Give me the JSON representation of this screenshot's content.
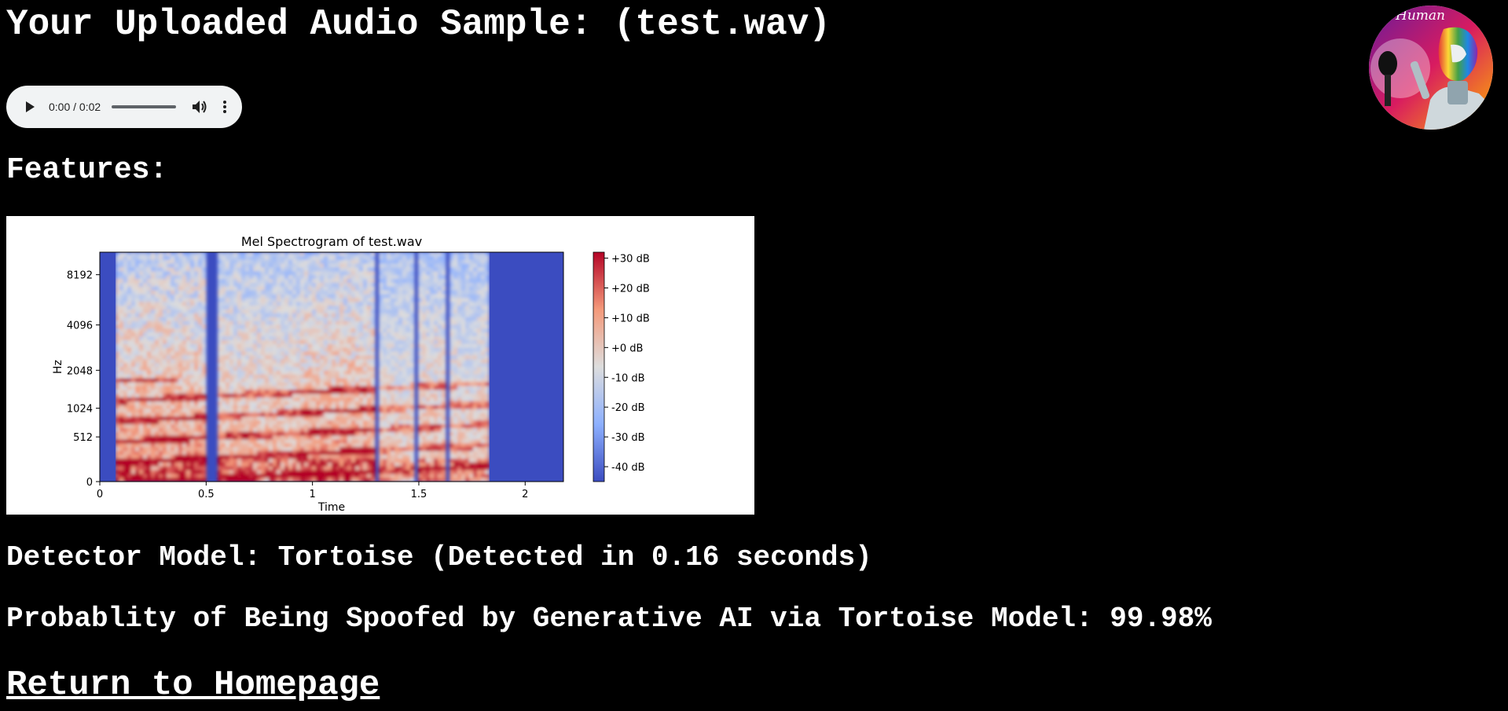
{
  "page": {
    "title": "Your Uploaded Audio Sample: (test.wav)",
    "features_heading": "Features:",
    "detector_line": "Detector Model: Tortoise (Detected in 0.16 seconds)",
    "probability_line": "Probablity of Being Spoofed by Generative AI via Tortoise Model: 99.98%",
    "home_link": "Return to Homepage"
  },
  "avatar": {
    "caption": "Human",
    "icon": "robot-avatar-icon"
  },
  "audio_player": {
    "time_display": "0:00 / 0:02",
    "progress": 0,
    "icons": [
      "play-icon",
      "volume-icon",
      "more-options-icon"
    ]
  },
  "chart_data": {
    "type": "heatmap",
    "title": "Mel Spectrogram of test.wav",
    "xlabel": "Time",
    "ylabel": "Hz",
    "xlim": [
      0,
      2.18
    ],
    "x_ticks": [
      "0",
      "0.5",
      "1",
      "1.5",
      "2"
    ],
    "y_ticks": [
      "0",
      "512",
      "1024",
      "2048",
      "4096",
      "8192"
    ],
    "y_scale": "mel",
    "colorbar": {
      "ticks": [
        "+30 dB",
        "+20 dB",
        "+10 dB",
        "+0 dB",
        "-10 dB",
        "-20 dB",
        "-30 dB",
        "-40 dB"
      ],
      "range": [
        -45,
        32
      ],
      "colormap": "coolwarm"
    },
    "grid": false
  },
  "colors": {
    "background": "#000000",
    "text": "#ffffff",
    "player_bg": "#f1f3f4"
  }
}
